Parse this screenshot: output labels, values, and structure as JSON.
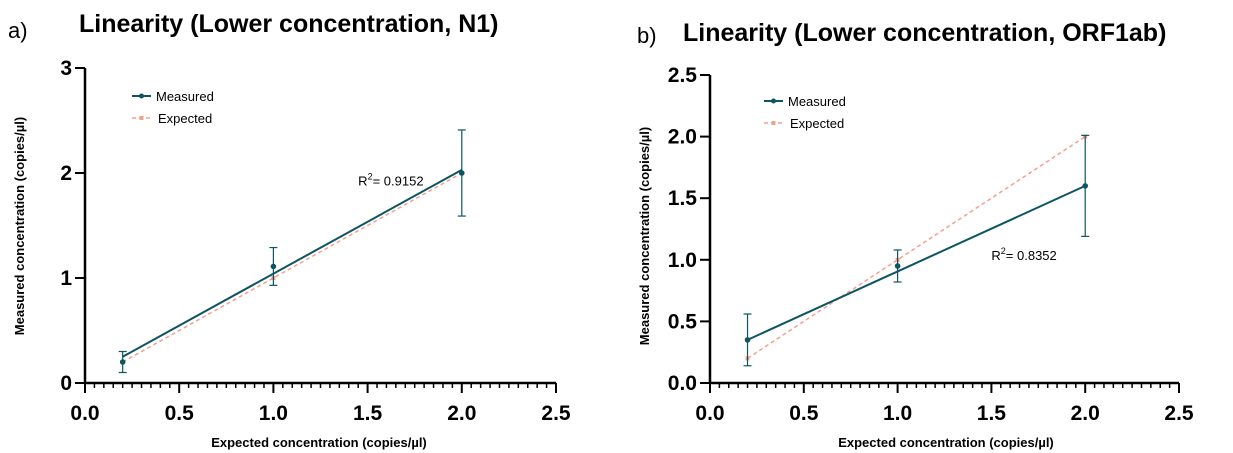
{
  "colors": {
    "measured": "#0d5561",
    "expected": "#f4a08f",
    "axis": "#000000"
  },
  "chart_data": [
    {
      "panel": "a)",
      "type": "line",
      "title": "Linearity (Lower concentration, N1)",
      "xlabel": "Expected concentration (copies/µl)",
      "ylabel": "Measured concentration (copies/µl)",
      "xlim": [
        0,
        2.5
      ],
      "ylim": [
        0,
        3
      ],
      "xticks": [
        "0.0",
        "0.5",
        "1.0",
        "1.5",
        "2.0",
        "2.5"
      ],
      "yticks": [
        "0",
        "1",
        "2",
        "3"
      ],
      "xtick_values": [
        0,
        0.5,
        1.0,
        1.5,
        2.0,
        2.5
      ],
      "ytick_values": [
        0,
        1,
        2,
        3
      ],
      "r2_label": "R",
      "r2_sup": "2",
      "r2_value": "= 0.9152",
      "r2_at": [
        1.45,
        1.88
      ],
      "legend_position": "top-left",
      "series": [
        {
          "name": "Measured",
          "x": [
            0.2,
            1.0,
            2.0
          ],
          "y": [
            0.2,
            1.11,
            2.0
          ],
          "error": [
            0.1,
            0.18,
            0.41
          ],
          "fit": {
            "x": [
              0.2,
              2.0
            ],
            "y": [
              0.25,
              2.03
            ]
          }
        },
        {
          "name": "Expected",
          "x": [
            0.2,
            1.0,
            2.0
          ],
          "y": [
            0.2,
            1.0,
            2.0
          ]
        }
      ]
    },
    {
      "panel": "b)",
      "type": "line",
      "title": "Linearity (Lower concentration, ORF1ab)",
      "xlabel": "Expected concentration (copies/µl)",
      "ylabel": "Measured concentration (copies/µl)",
      "xlim": [
        0,
        2.5
      ],
      "ylim": [
        0,
        2.5
      ],
      "xticks": [
        "0.0",
        "0.5",
        "1.0",
        "1.5",
        "2.0",
        "2.5"
      ],
      "yticks": [
        "0.0",
        "0.5",
        "1.0",
        "1.5",
        "2.0",
        "2.5"
      ],
      "xtick_values": [
        0,
        0.5,
        1.0,
        1.5,
        2.0,
        2.5
      ],
      "ytick_values": [
        0,
        0.5,
        1.0,
        1.5,
        2.0,
        2.5
      ],
      "r2_label": "R",
      "r2_sup": "2",
      "r2_value": "= 0.8352",
      "r2_at": [
        1.5,
        1.0
      ],
      "legend_position": "top-left",
      "series": [
        {
          "name": "Measured",
          "x": [
            0.2,
            1.0,
            2.0
          ],
          "y": [
            0.35,
            0.95,
            1.6
          ],
          "error": [
            0.21,
            0.13,
            0.41
          ],
          "fit": {
            "x": [
              0.2,
              2.0
            ],
            "y": [
              0.35,
              1.6
            ]
          }
        },
        {
          "name": "Expected",
          "x": [
            0.2,
            1.0,
            2.0
          ],
          "y": [
            0.2,
            1.0,
            2.0
          ]
        }
      ]
    }
  ]
}
